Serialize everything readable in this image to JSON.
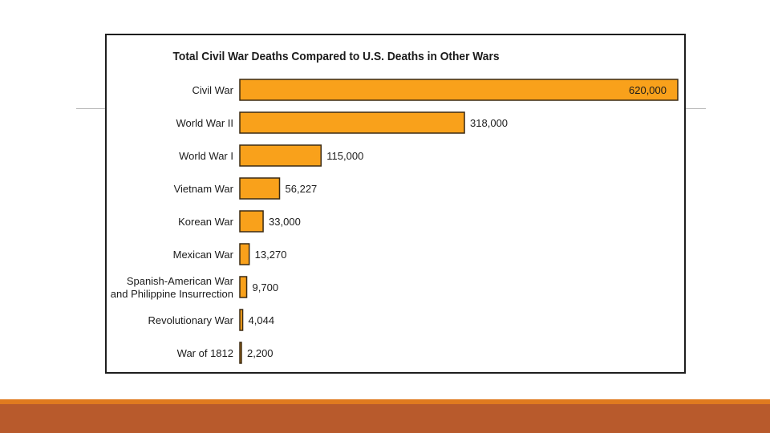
{
  "chart_data": {
    "type": "bar",
    "orientation": "horizontal",
    "title": "Total Civil War Deaths Compared to U.S. Deaths in Other Wars",
    "categories": [
      [
        "Civil War"
      ],
      [
        "World War II"
      ],
      [
        "World War I"
      ],
      [
        "Vietnam War"
      ],
      [
        "Korean War"
      ],
      [
        "Mexican War"
      ],
      [
        "Spanish-American War",
        "and Philippine Insurrection"
      ],
      [
        "Revolutionary War"
      ],
      [
        "War of 1812"
      ]
    ],
    "values": [
      620000,
      318000,
      115000,
      56227,
      33000,
      13270,
      9700,
      4044,
      2200
    ],
    "value_labels": [
      "620,000",
      "318,000",
      "115,000",
      "56,227",
      "33,000",
      "13,270",
      "9,700",
      "4,044",
      "2,200"
    ],
    "xlim": [
      0,
      620000
    ],
    "grid": false,
    "legend": "none",
    "colors": {
      "bar_fill": "#f9a11b",
      "bar_stroke": "#3a2a14",
      "text": "#1b1b1b"
    }
  },
  "theme": {
    "footer_color": "#b85a2c",
    "footer_stripe": "#e07a1f"
  }
}
